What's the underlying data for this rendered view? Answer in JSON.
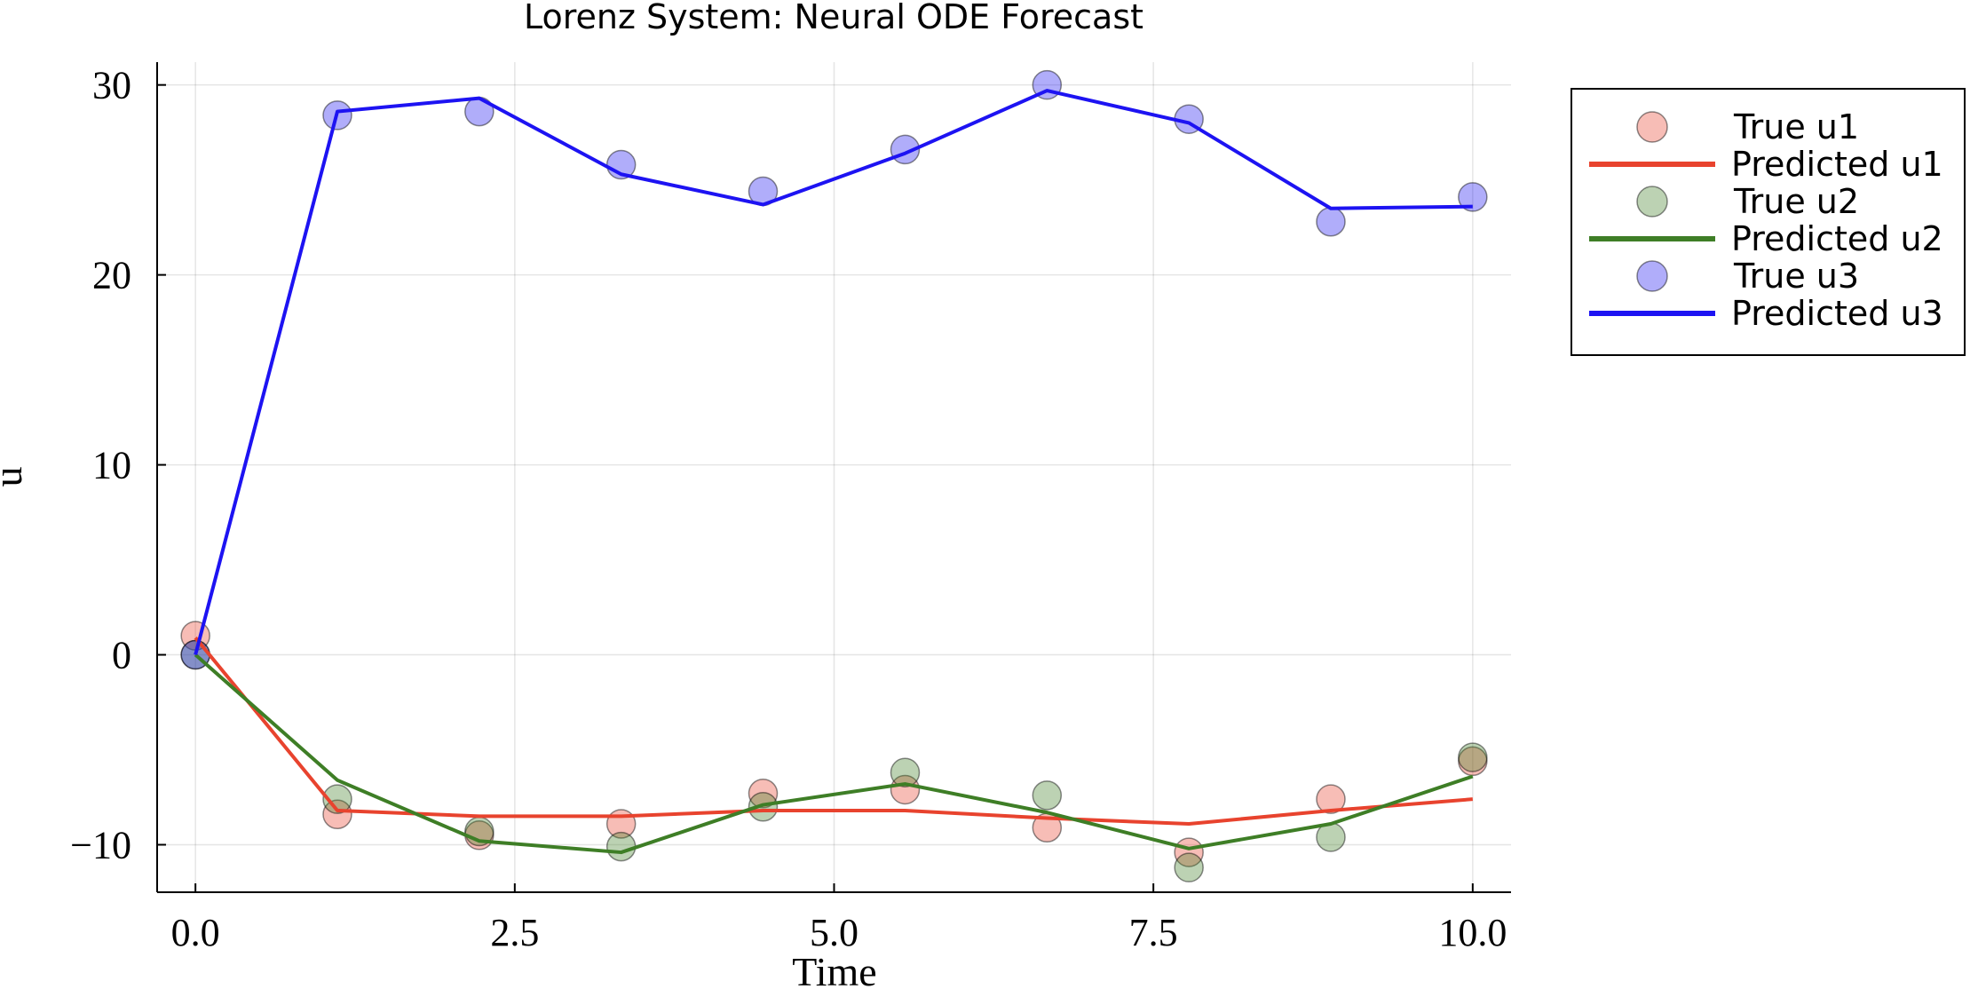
{
  "chart_data": {
    "type": "line",
    "title": "Lorenz System: Neural ODE Forecast",
    "xlabel": "Time",
    "ylabel": "u",
    "xlim": [
      -0.3,
      10.3
    ],
    "ylim": [
      -12.5,
      31.2
    ],
    "xticks": [
      0.0,
      2.5,
      5.0,
      7.5,
      10.0
    ],
    "xtick_labels": [
      "0.0",
      "2.5",
      "5.0",
      "7.5",
      "10.0"
    ],
    "yticks": [
      -10,
      0,
      10,
      20,
      30
    ],
    "ytick_labels": [
      "−10",
      "0",
      "10",
      "20",
      "30"
    ],
    "grid": true,
    "legend_position": "outside-top-right",
    "x": [
      0.0,
      1.111,
      2.222,
      3.333,
      4.444,
      5.556,
      6.667,
      7.778,
      8.889,
      10.0
    ],
    "series": [
      {
        "name": "True u1",
        "kind": "scatter",
        "color": "#e8432e",
        "values": [
          1.0,
          -8.4,
          -9.5,
          -8.9,
          -7.3,
          -7.1,
          -9.1,
          -10.4,
          -7.6,
          -5.6
        ]
      },
      {
        "name": "Predicted u1",
        "kind": "line",
        "color": "#e8432e",
        "values": [
          0.9,
          -8.2,
          -8.5,
          -8.5,
          -8.2,
          -8.2,
          -8.6,
          -8.9,
          -8.2,
          -7.6
        ]
      },
      {
        "name": "True u2",
        "kind": "scatter",
        "color": "#3e7e26",
        "values": [
          0.0,
          -7.6,
          -9.3,
          -10.1,
          -8.0,
          -6.2,
          -7.4,
          -11.2,
          -9.6,
          -5.4
        ]
      },
      {
        "name": "Predicted u2",
        "kind": "line",
        "color": "#3e7e26",
        "values": [
          0.0,
          -6.6,
          -9.8,
          -10.4,
          -7.9,
          -6.8,
          -8.3,
          -10.2,
          -8.9,
          -6.4
        ]
      },
      {
        "name": "True u3",
        "kind": "scatter",
        "color": "#1d13f2",
        "values": [
          0.0,
          28.4,
          28.6,
          25.8,
          24.4,
          26.6,
          30.0,
          28.2,
          22.8,
          24.1
        ]
      },
      {
        "name": "Predicted u3",
        "kind": "line",
        "color": "#1d13f2",
        "values": [
          0.0,
          28.6,
          29.3,
          25.3,
          23.7,
          26.4,
          29.7,
          28.0,
          23.5,
          23.6
        ]
      }
    ]
  }
}
